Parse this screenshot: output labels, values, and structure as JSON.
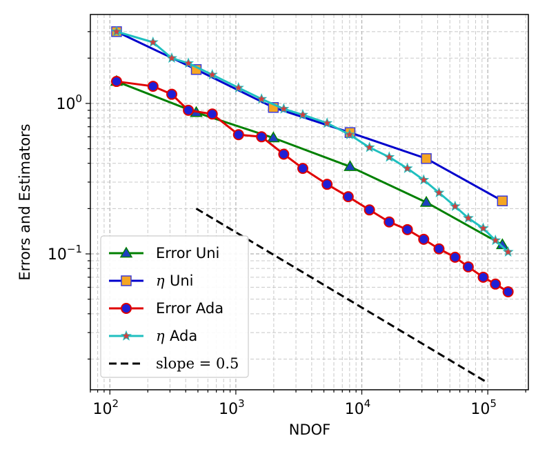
{
  "chart_data": {
    "type": "line",
    "xscale": "log",
    "yscale": "log",
    "xlim": [
      70,
      210000
    ],
    "ylim": [
      0.0125,
      3.9
    ],
    "xlabel": "NDOF",
    "ylabel": "Errors and Estimators",
    "grid": true,
    "legend_position": "lower-left",
    "x_ticks": [
      {
        "value": 100,
        "base": "10",
        "exp": "2"
      },
      {
        "value": 1000,
        "base": "10",
        "exp": "3"
      },
      {
        "value": 10000,
        "base": "10",
        "exp": "4"
      },
      {
        "value": 100000,
        "base": "10",
        "exp": "5"
      }
    ],
    "y_ticks": [
      {
        "value": 1,
        "base": "10",
        "exp": "0"
      },
      {
        "value": 0.1,
        "base": "10",
        "exp": "−1"
      }
    ],
    "series": [
      {
        "name": "Error Uni",
        "legend_symbol": "",
        "legend_text": "Error Uni",
        "color": "#008000",
        "marker": "triangle",
        "marker_face": "#1f3fbf",
        "marker_edge": "#008000",
        "x": [
          113,
          485,
          1985,
          8065,
          32513,
          130561
        ],
        "y": [
          1.4,
          0.87,
          0.59,
          0.38,
          0.22,
          0.115
        ]
      },
      {
        "name": "η Uni",
        "legend_symbol": "η",
        "legend_text": "Uni",
        "color": "#0000cc",
        "marker": "square",
        "marker_face": "#f5a623",
        "marker_edge": "#3b3bd6",
        "x": [
          113,
          485,
          1985,
          8065,
          32513,
          130561
        ],
        "y": [
          3.0,
          1.68,
          0.94,
          0.64,
          0.43,
          0.225
        ]
      },
      {
        "name": "Error Ada",
        "legend_symbol": "",
        "legend_text": "Error Ada",
        "color": "#e00000",
        "marker": "circle",
        "marker_face": "#1f1fd6",
        "marker_edge": "#e00000",
        "x": [
          113,
          220,
          310,
          420,
          650,
          1050,
          1600,
          2400,
          3400,
          5300,
          7800,
          11500,
          16500,
          23000,
          31000,
          41000,
          55000,
          70000,
          92000,
          115000,
          145000
        ],
        "y": [
          1.4,
          1.3,
          1.15,
          0.9,
          0.85,
          0.62,
          0.6,
          0.46,
          0.37,
          0.29,
          0.24,
          0.196,
          0.163,
          0.145,
          0.125,
          0.108,
          0.095,
          0.082,
          0.07,
          0.063,
          0.056
        ]
      },
      {
        "name": "η Ada",
        "legend_symbol": "η",
        "legend_text": "Ada",
        "color": "#1fbfbf",
        "marker": "star",
        "marker_face": "#d04040",
        "marker_edge": "#1fbfbf",
        "x": [
          113,
          220,
          310,
          420,
          650,
          1050,
          1600,
          2400,
          3400,
          5300,
          8000,
          11500,
          16500,
          23000,
          31000,
          41000,
          55000,
          70000,
          92000,
          115000,
          145000
        ],
        "y": [
          3.0,
          2.55,
          2.0,
          1.85,
          1.55,
          1.27,
          1.07,
          0.92,
          0.84,
          0.74,
          0.62,
          0.51,
          0.44,
          0.37,
          0.31,
          0.255,
          0.207,
          0.173,
          0.148,
          0.123,
          0.103
        ]
      },
      {
        "name": "slope=0.5",
        "legend_symbol": "",
        "legend_text": "slope = 0.5",
        "color": "#000000",
        "marker": "none",
        "dashed": true,
        "x": [
          485,
          100000
        ],
        "y": [
          0.2,
          0.0139
        ]
      }
    ]
  }
}
